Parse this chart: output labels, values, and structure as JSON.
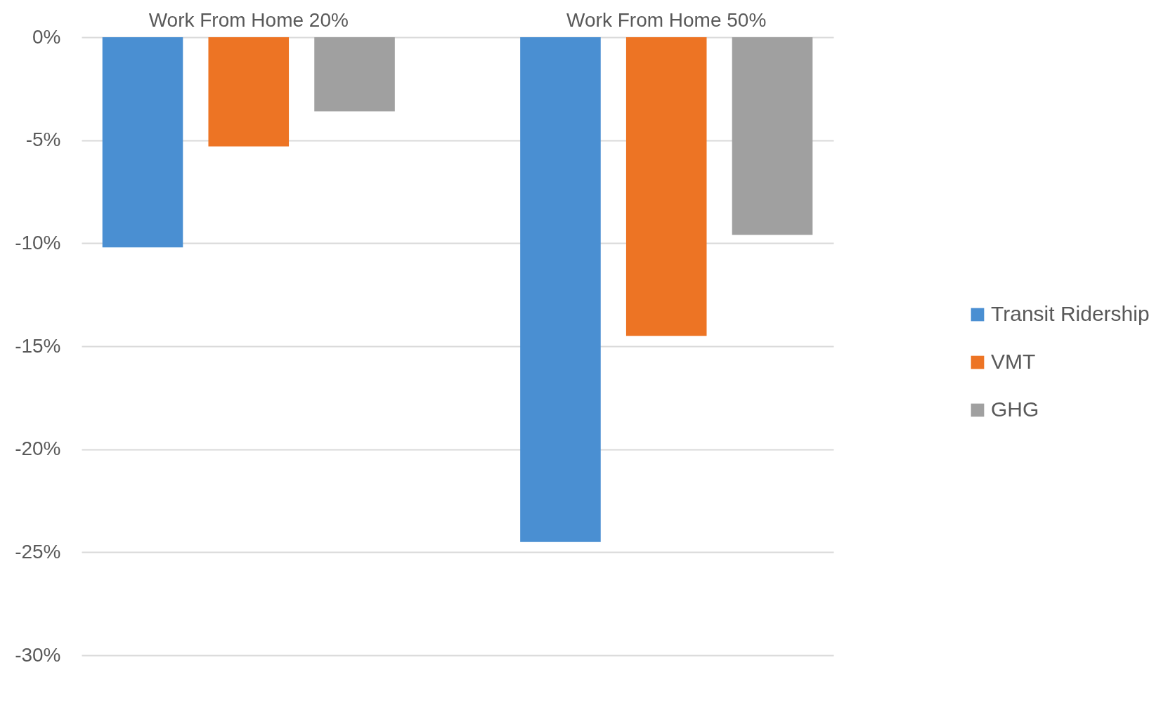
{
  "chart_data": {
    "type": "bar",
    "categories": [
      "Work From Home 20%",
      "Work From Home 50%"
    ],
    "series": [
      {
        "name": "Transit Ridership",
        "color": "#4a8fd2",
        "values": [
          -10.2,
          -24.5
        ]
      },
      {
        "name": "VMT",
        "color": "#ed7424",
        "values": [
          -5.3,
          -14.5
        ]
      },
      {
        "name": "GHG",
        "color": "#a0a0a0",
        "values": [
          -3.6,
          -9.6
        ]
      }
    ],
    "ylim": [
      -30,
      0
    ],
    "yticks": [
      {
        "value": -30,
        "label": "-30%"
      },
      {
        "value": -25,
        "label": "-25%"
      },
      {
        "value": -20,
        "label": "-20%"
      },
      {
        "value": -15,
        "label": "-15%"
      },
      {
        "value": -10,
        "label": "-10%"
      },
      {
        "value": -5,
        "label": "-5%"
      },
      {
        "value": 0,
        "label": "0%"
      }
    ],
    "grid": "y",
    "legend": "right"
  }
}
